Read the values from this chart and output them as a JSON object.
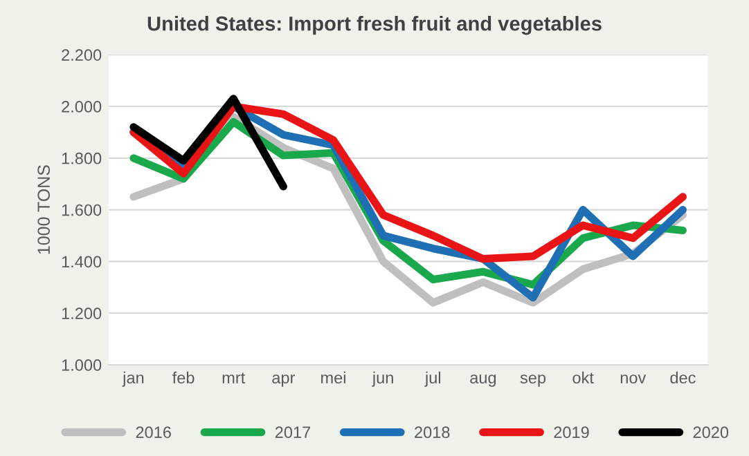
{
  "chart_data": {
    "type": "line",
    "title": "United States: Import fresh fruit and vegetables",
    "ylabel": "1000 TONS",
    "categories": [
      "jan",
      "feb",
      "mrt",
      "apr",
      "mei",
      "jun",
      "jul",
      "aug",
      "sep",
      "okt",
      "nov",
      "dec"
    ],
    "series": [
      {
        "name": "2016",
        "color": "#bfbfbf",
        "values": [
          1650,
          1720,
          1960,
          1840,
          1760,
          1400,
          1240,
          1320,
          1240,
          1370,
          1430,
          1580
        ]
      },
      {
        "name": "2017",
        "color": "#1aa84c",
        "values": [
          1800,
          1720,
          1940,
          1810,
          1820,
          1480,
          1330,
          1360,
          1310,
          1490,
          1540,
          1520
        ]
      },
      {
        "name": "2018",
        "color": "#1f6fb5",
        "values": [
          1900,
          1760,
          2000,
          1890,
          1850,
          1500,
          1450,
          1410,
          1260,
          1600,
          1420,
          1600
        ]
      },
      {
        "name": "2019",
        "color": "#e81416",
        "values": [
          1900,
          1740,
          2000,
          1970,
          1870,
          1580,
          1500,
          1410,
          1420,
          1540,
          1490,
          1650
        ]
      },
      {
        "name": "2020",
        "color": "#000000",
        "values": [
          1920,
          1790,
          2030,
          1690,
          null,
          null,
          null,
          null,
          null,
          null,
          null,
          null
        ]
      }
    ],
    "ylim": [
      1000,
      2200
    ],
    "yticks": [
      {
        "value": 1000,
        "label": "1.000"
      },
      {
        "value": 1200,
        "label": "1.200"
      },
      {
        "value": 1400,
        "label": "1.400"
      },
      {
        "value": 1600,
        "label": "1.600"
      },
      {
        "value": 1800,
        "label": "1.800"
      },
      {
        "value": 2000,
        "label": "2.000"
      },
      {
        "value": 2200,
        "label": "2.200"
      }
    ],
    "grid": "y",
    "legend": "bottom",
    "marker": "none",
    "line_style": "solid"
  }
}
